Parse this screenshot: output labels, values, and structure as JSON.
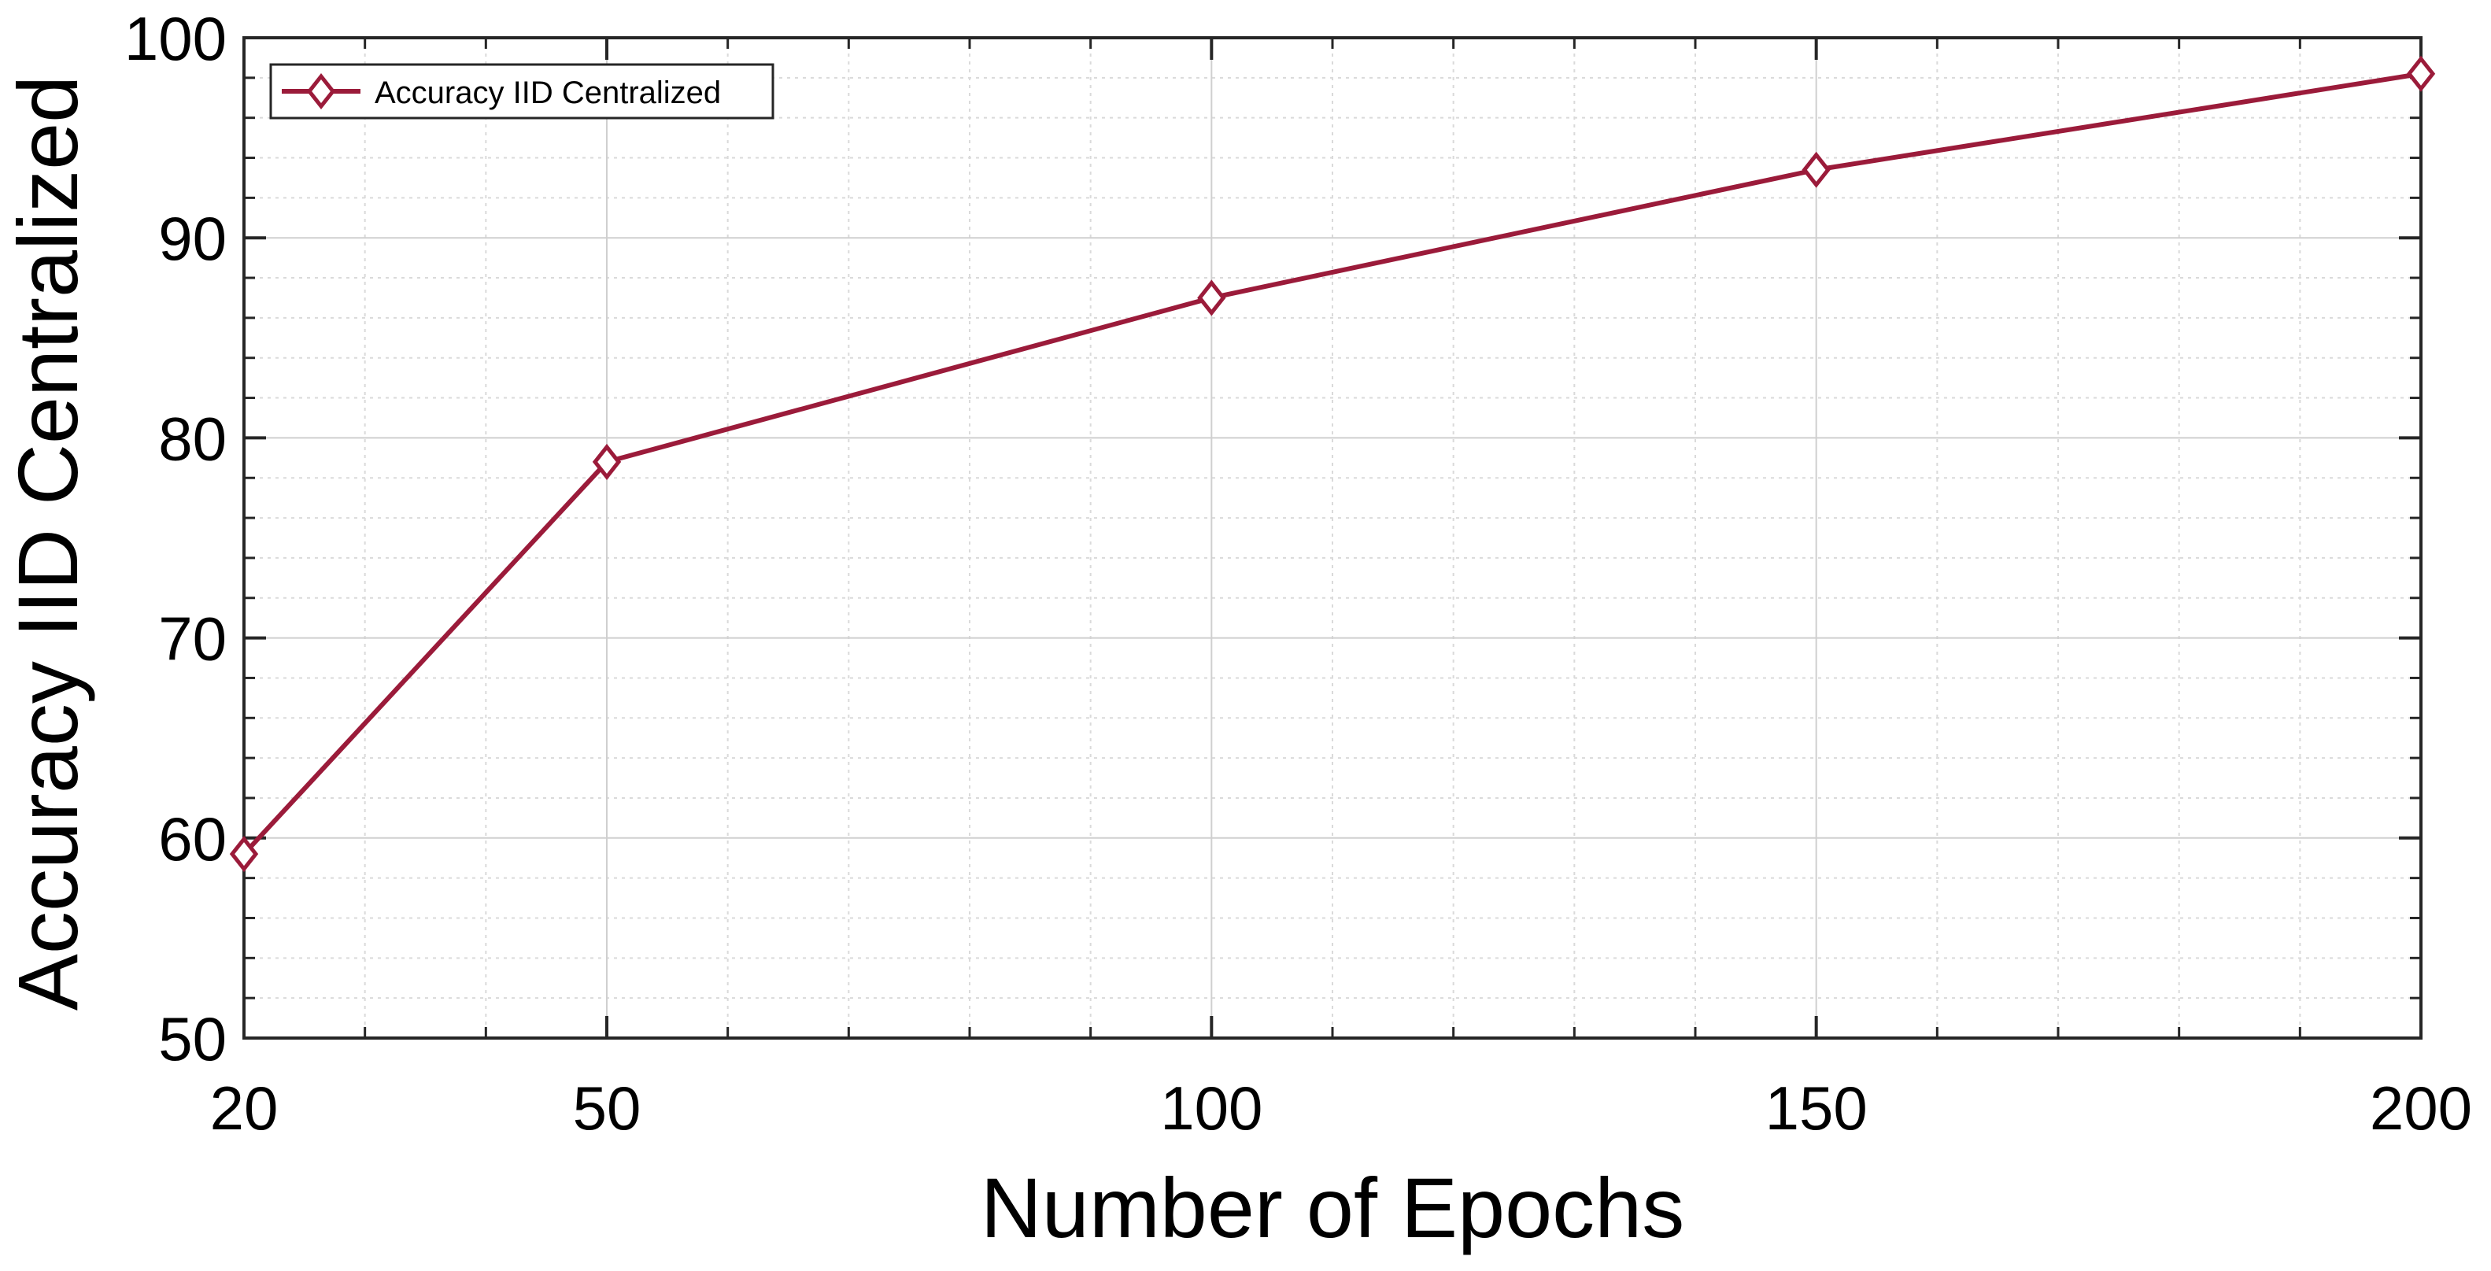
{
  "chart_data": {
    "type": "line",
    "title": "",
    "xlabel": "Number of Epochs",
    "ylabel": "Accuracy IID Centralized",
    "x": [
      20,
      50,
      100,
      150,
      200
    ],
    "series": [
      {
        "name": "Accuracy IID Centralized",
        "values": [
          59.2,
          78.8,
          87.0,
          93.4,
          98.2
        ],
        "color": "#9B1B3A",
        "marker": "diamond"
      }
    ],
    "xlim": [
      20,
      200
    ],
    "ylim": [
      50,
      100
    ],
    "xticks": [
      20,
      50,
      100,
      150,
      200
    ],
    "yticks": [
      50,
      60,
      70,
      80,
      90,
      100
    ],
    "x_tick_labels": [
      "20",
      "50",
      "100",
      "150",
      "200"
    ],
    "y_tick_labels": [
      "50",
      "60",
      "70",
      "80",
      "90",
      "100"
    ],
    "x_minor_ticks": [
      30,
      40,
      60,
      70,
      80,
      90,
      110,
      120,
      130,
      140,
      160,
      170,
      180,
      190
    ],
    "y_minor_step": 2,
    "grid": true,
    "minor_grid": true,
    "legend": {
      "position": "top-left",
      "entries": [
        "Accuracy IID Centralized"
      ]
    }
  }
}
